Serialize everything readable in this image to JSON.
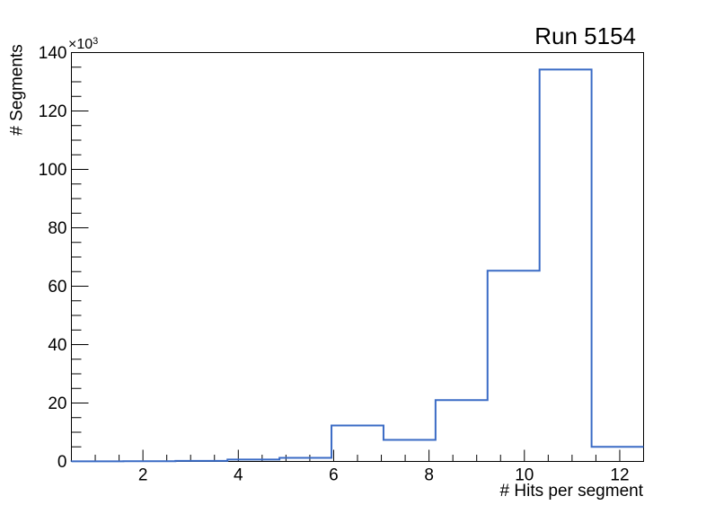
{
  "chart_data": {
    "type": "bar",
    "subtype": "step-histogram",
    "title": "Run 5154",
    "xlabel": "# Hits per segment",
    "ylabel": "# Segments",
    "y_scale_base": "×10",
    "y_scale_exp": "3",
    "xlim": [
      0.5,
      12.5
    ],
    "ylim": [
      0,
      140000
    ],
    "n_bins": 11,
    "bin_edges": [
      0.5,
      1.5909,
      2.6818,
      3.7727,
      4.8636,
      5.9545,
      7.0455,
      8.1364,
      9.2273,
      10.3182,
      11.4091,
      12.5
    ],
    "values": [
      50,
      80,
      200,
      650,
      1250,
      12300,
      7400,
      21000,
      65300,
      134200,
      5000
    ],
    "x_major_ticks": [
      2,
      4,
      6,
      8,
      10,
      12
    ],
    "x_major_tick_labels": [
      "2",
      "4",
      "6",
      "8",
      "10",
      "12"
    ],
    "x_minor_tick_step": 0.5,
    "y_major_ticks": [
      0,
      20000,
      40000,
      60000,
      80000,
      100000,
      120000,
      140000
    ],
    "y_major_tick_labels": [
      "0",
      "20",
      "40",
      "60",
      "80",
      "100",
      "120",
      "140"
    ],
    "y_minor_tick_step": 5000,
    "grid": false,
    "legend": null,
    "line_color": "#3a6bc5",
    "frame_color": "#000000",
    "background_color": "#ffffff"
  }
}
